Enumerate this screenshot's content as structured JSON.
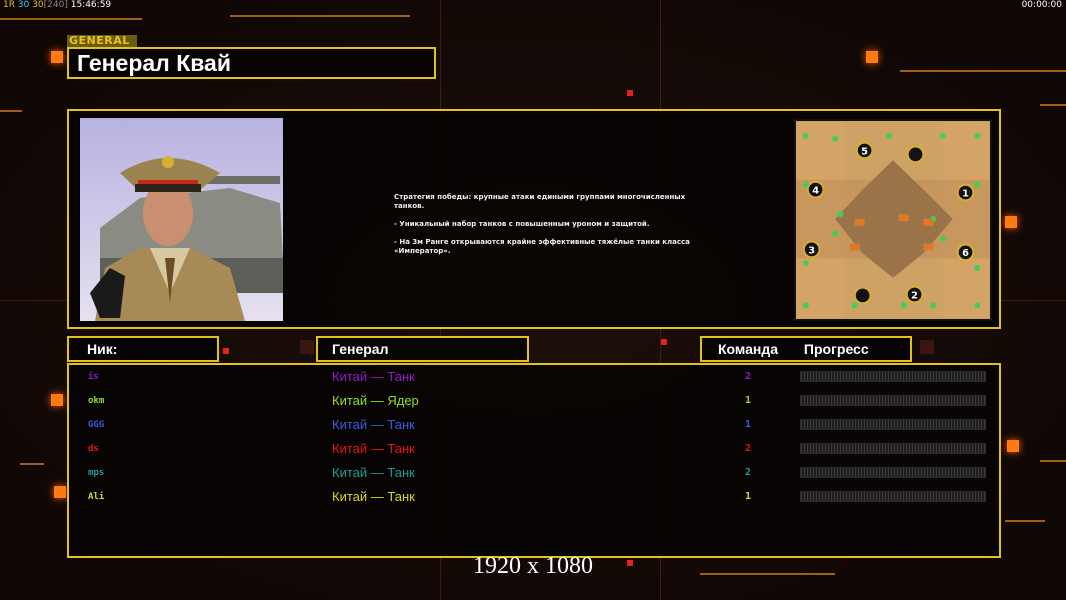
{
  "status_bar": {
    "fps": "1R",
    "a": "30",
    "b": "30",
    "c": "[240]",
    "clock": "15:46:59",
    "timer": "00:00:00"
  },
  "header": {
    "tag": "GENERAL",
    "title": "Генерал Квай"
  },
  "description": [
    "Стратегия победы: крупные атаки едиными группами многочисленных танков.",
    "- Уникальный набор танков с повышенным уроном и защитой.",
    "- На 3м Ранге открываются крайне эффективные тяжёлые танки класса «Император»."
  ],
  "minimap": {
    "start_labels": [
      "5",
      "",
      "4",
      "1",
      "3",
      "6",
      "",
      "2"
    ]
  },
  "table": {
    "headers": {
      "nick": "Ник:",
      "general": "Генерал",
      "team": "Команда",
      "progress": "Прогресс"
    },
    "rows": [
      {
        "nick": "is",
        "general": "Китай — Танк",
        "team": "2",
        "color": "#8a1ccc",
        "progress": 0
      },
      {
        "nick": "okm",
        "general": "Китай — Ядер",
        "team": "1",
        "color": "#8ee01e",
        "progress": 0
      },
      {
        "nick": "GGG",
        "general": "Китай — Танк",
        "team": "1",
        "color": "#3a5ae8",
        "progress": 0
      },
      {
        "nick": "ds",
        "general": "Китай — Танк",
        "team": "2",
        "color": "#e81414",
        "progress": 0
      },
      {
        "nick": "mps",
        "general": "Китай — Танк",
        "team": "2",
        "color": "#1a9c94",
        "progress": 0
      },
      {
        "nick": "Ali",
        "general": "Китай — Танк",
        "team": "1",
        "color": "#d8d81e",
        "progress": 0
      }
    ]
  },
  "resolution": "1920 x 1080"
}
